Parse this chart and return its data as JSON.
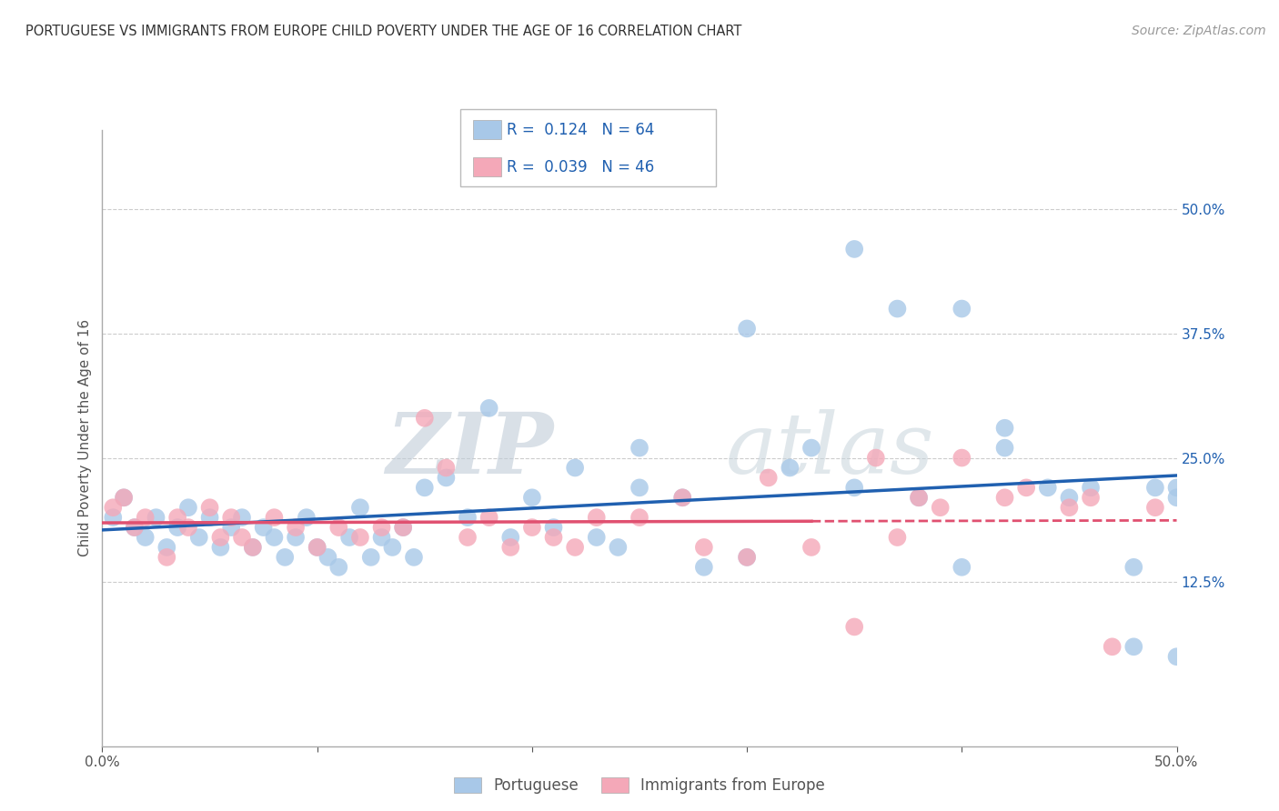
{
  "title": "PORTUGUESE VS IMMIGRANTS FROM EUROPE CHILD POVERTY UNDER THE AGE OF 16 CORRELATION CHART",
  "source": "Source: ZipAtlas.com",
  "ylabel": "Child Poverty Under the Age of 16",
  "xlim": [
    0.0,
    0.5
  ],
  "ylim": [
    -0.04,
    0.58
  ],
  "ytick_labels": [
    "12.5%",
    "25.0%",
    "37.5%",
    "50.0%"
  ],
  "ytick_positions": [
    0.125,
    0.25,
    0.375,
    0.5
  ],
  "blue_R": "0.124",
  "blue_N": "64",
  "pink_R": "0.039",
  "pink_N": "46",
  "blue_color": "#a8c8e8",
  "pink_color": "#f4a8b8",
  "blue_line_color": "#2060b0",
  "pink_line_color": "#e05070",
  "legend_label_blue": "Portuguese",
  "legend_label_pink": "Immigrants from Europe",
  "blue_scatter_x": [
    0.005,
    0.01,
    0.015,
    0.02,
    0.025,
    0.03,
    0.035,
    0.04,
    0.045,
    0.05,
    0.055,
    0.06,
    0.065,
    0.07,
    0.075,
    0.08,
    0.085,
    0.09,
    0.095,
    0.1,
    0.105,
    0.11,
    0.115,
    0.12,
    0.125,
    0.13,
    0.135,
    0.14,
    0.145,
    0.15,
    0.16,
    0.17,
    0.18,
    0.19,
    0.2,
    0.21,
    0.22,
    0.23,
    0.24,
    0.25,
    0.27,
    0.28,
    0.3,
    0.32,
    0.33,
    0.35,
    0.37,
    0.38,
    0.4,
    0.42,
    0.44,
    0.45,
    0.46,
    0.48,
    0.49,
    0.5,
    0.5,
    0.35,
    0.4,
    0.5,
    0.25,
    0.3,
    0.42,
    0.48
  ],
  "blue_scatter_y": [
    0.19,
    0.21,
    0.18,
    0.17,
    0.19,
    0.16,
    0.18,
    0.2,
    0.17,
    0.19,
    0.16,
    0.18,
    0.19,
    0.16,
    0.18,
    0.17,
    0.15,
    0.17,
    0.19,
    0.16,
    0.15,
    0.14,
    0.17,
    0.2,
    0.15,
    0.17,
    0.16,
    0.18,
    0.15,
    0.22,
    0.23,
    0.19,
    0.3,
    0.17,
    0.21,
    0.18,
    0.24,
    0.17,
    0.16,
    0.22,
    0.21,
    0.14,
    0.15,
    0.24,
    0.26,
    0.22,
    0.4,
    0.21,
    0.14,
    0.26,
    0.22,
    0.21,
    0.22,
    0.14,
    0.22,
    0.22,
    0.05,
    0.46,
    0.4,
    0.21,
    0.26,
    0.38,
    0.28,
    0.06
  ],
  "pink_scatter_x": [
    0.005,
    0.01,
    0.015,
    0.02,
    0.03,
    0.035,
    0.04,
    0.05,
    0.055,
    0.06,
    0.065,
    0.07,
    0.08,
    0.09,
    0.1,
    0.11,
    0.12,
    0.13,
    0.14,
    0.15,
    0.16,
    0.17,
    0.18,
    0.19,
    0.2,
    0.21,
    0.22,
    0.23,
    0.25,
    0.27,
    0.28,
    0.3,
    0.31,
    0.33,
    0.35,
    0.36,
    0.37,
    0.38,
    0.39,
    0.4,
    0.42,
    0.43,
    0.45,
    0.46,
    0.47,
    0.49
  ],
  "pink_scatter_y": [
    0.2,
    0.21,
    0.18,
    0.19,
    0.15,
    0.19,
    0.18,
    0.2,
    0.17,
    0.19,
    0.17,
    0.16,
    0.19,
    0.18,
    0.16,
    0.18,
    0.17,
    0.18,
    0.18,
    0.29,
    0.24,
    0.17,
    0.19,
    0.16,
    0.18,
    0.17,
    0.16,
    0.19,
    0.19,
    0.21,
    0.16,
    0.15,
    0.23,
    0.16,
    0.08,
    0.25,
    0.17,
    0.21,
    0.2,
    0.25,
    0.21,
    0.22,
    0.2,
    0.21,
    0.06,
    0.2
  ],
  "watermark_zip": "ZIP",
  "watermark_atlas": "atlas",
  "background_color": "#ffffff",
  "grid_color": "#cccccc"
}
